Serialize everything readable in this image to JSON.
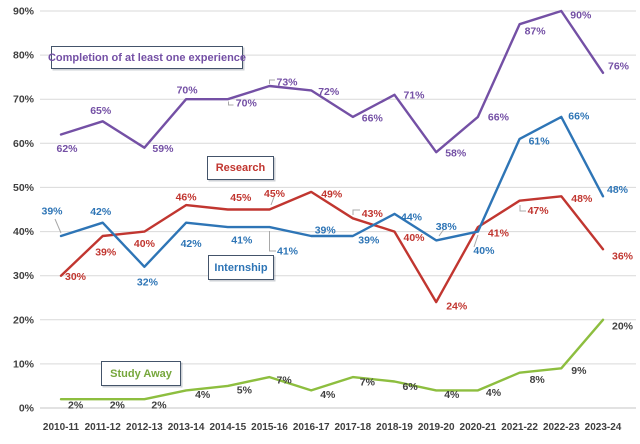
{
  "chart_data": {
    "type": "line",
    "title": "",
    "xlabel": "",
    "ylabel": "",
    "categories": [
      "2010-11",
      "2011-12",
      "2012-13",
      "2013-14",
      "2014-15",
      "2015-16",
      "2016-17",
      "2017-18",
      "2018-19",
      "2019-20",
      "2020-21",
      "2021-22",
      "2022-23",
      "2023-24"
    ],
    "series": [
      {
        "name": "Completion of at least one experience",
        "color": "#7450A5",
        "label_color": "#7450A5",
        "values": [
          62,
          65,
          59,
          70,
          70,
          73,
          72,
          66,
          71,
          58,
          66,
          87,
          90,
          76
        ]
      },
      {
        "name": "Research",
        "color": "#C13630",
        "label_color": "#C13630",
        "values": [
          30,
          39,
          40,
          46,
          45,
          45,
          49,
          43,
          40,
          24,
          41,
          47,
          48,
          36
        ]
      },
      {
        "name": "Internship",
        "color": "#2E75B6",
        "label_color": "#2E75B6",
        "values": [
          39,
          42,
          32,
          42,
          41,
          41,
          39,
          39,
          44,
          38,
          40,
          61,
          66,
          48
        ]
      },
      {
        "name": "Study Away",
        "color": "#8DBE3F",
        "label_color": "#404040",
        "values": [
          2,
          2,
          2,
          4,
          5,
          7,
          4,
          7,
          6,
          4,
          4,
          8,
          9,
          20
        ]
      }
    ],
    "ylim": [
      0,
      90
    ],
    "ytick_step": 10,
    "ytick_labels": [
      "0%",
      "10%",
      "20%",
      "30%",
      "40%",
      "50%",
      "60%",
      "70%",
      "80%",
      "90%"
    ],
    "grid": true,
    "value_suffix": "%",
    "legend_position": "inline-annotation-boxes",
    "annotations": [
      {
        "text": "Completion of at least one experience",
        "color": "#7450A5"
      },
      {
        "text": "Research",
        "color": "#C13630"
      },
      {
        "text": "Internship",
        "color": "#2E75B6"
      },
      {
        "text": "Study Away",
        "color": "#76A73C"
      }
    ],
    "axis_text_color": "#404040",
    "grid_color": "#D9D9D9"
  }
}
